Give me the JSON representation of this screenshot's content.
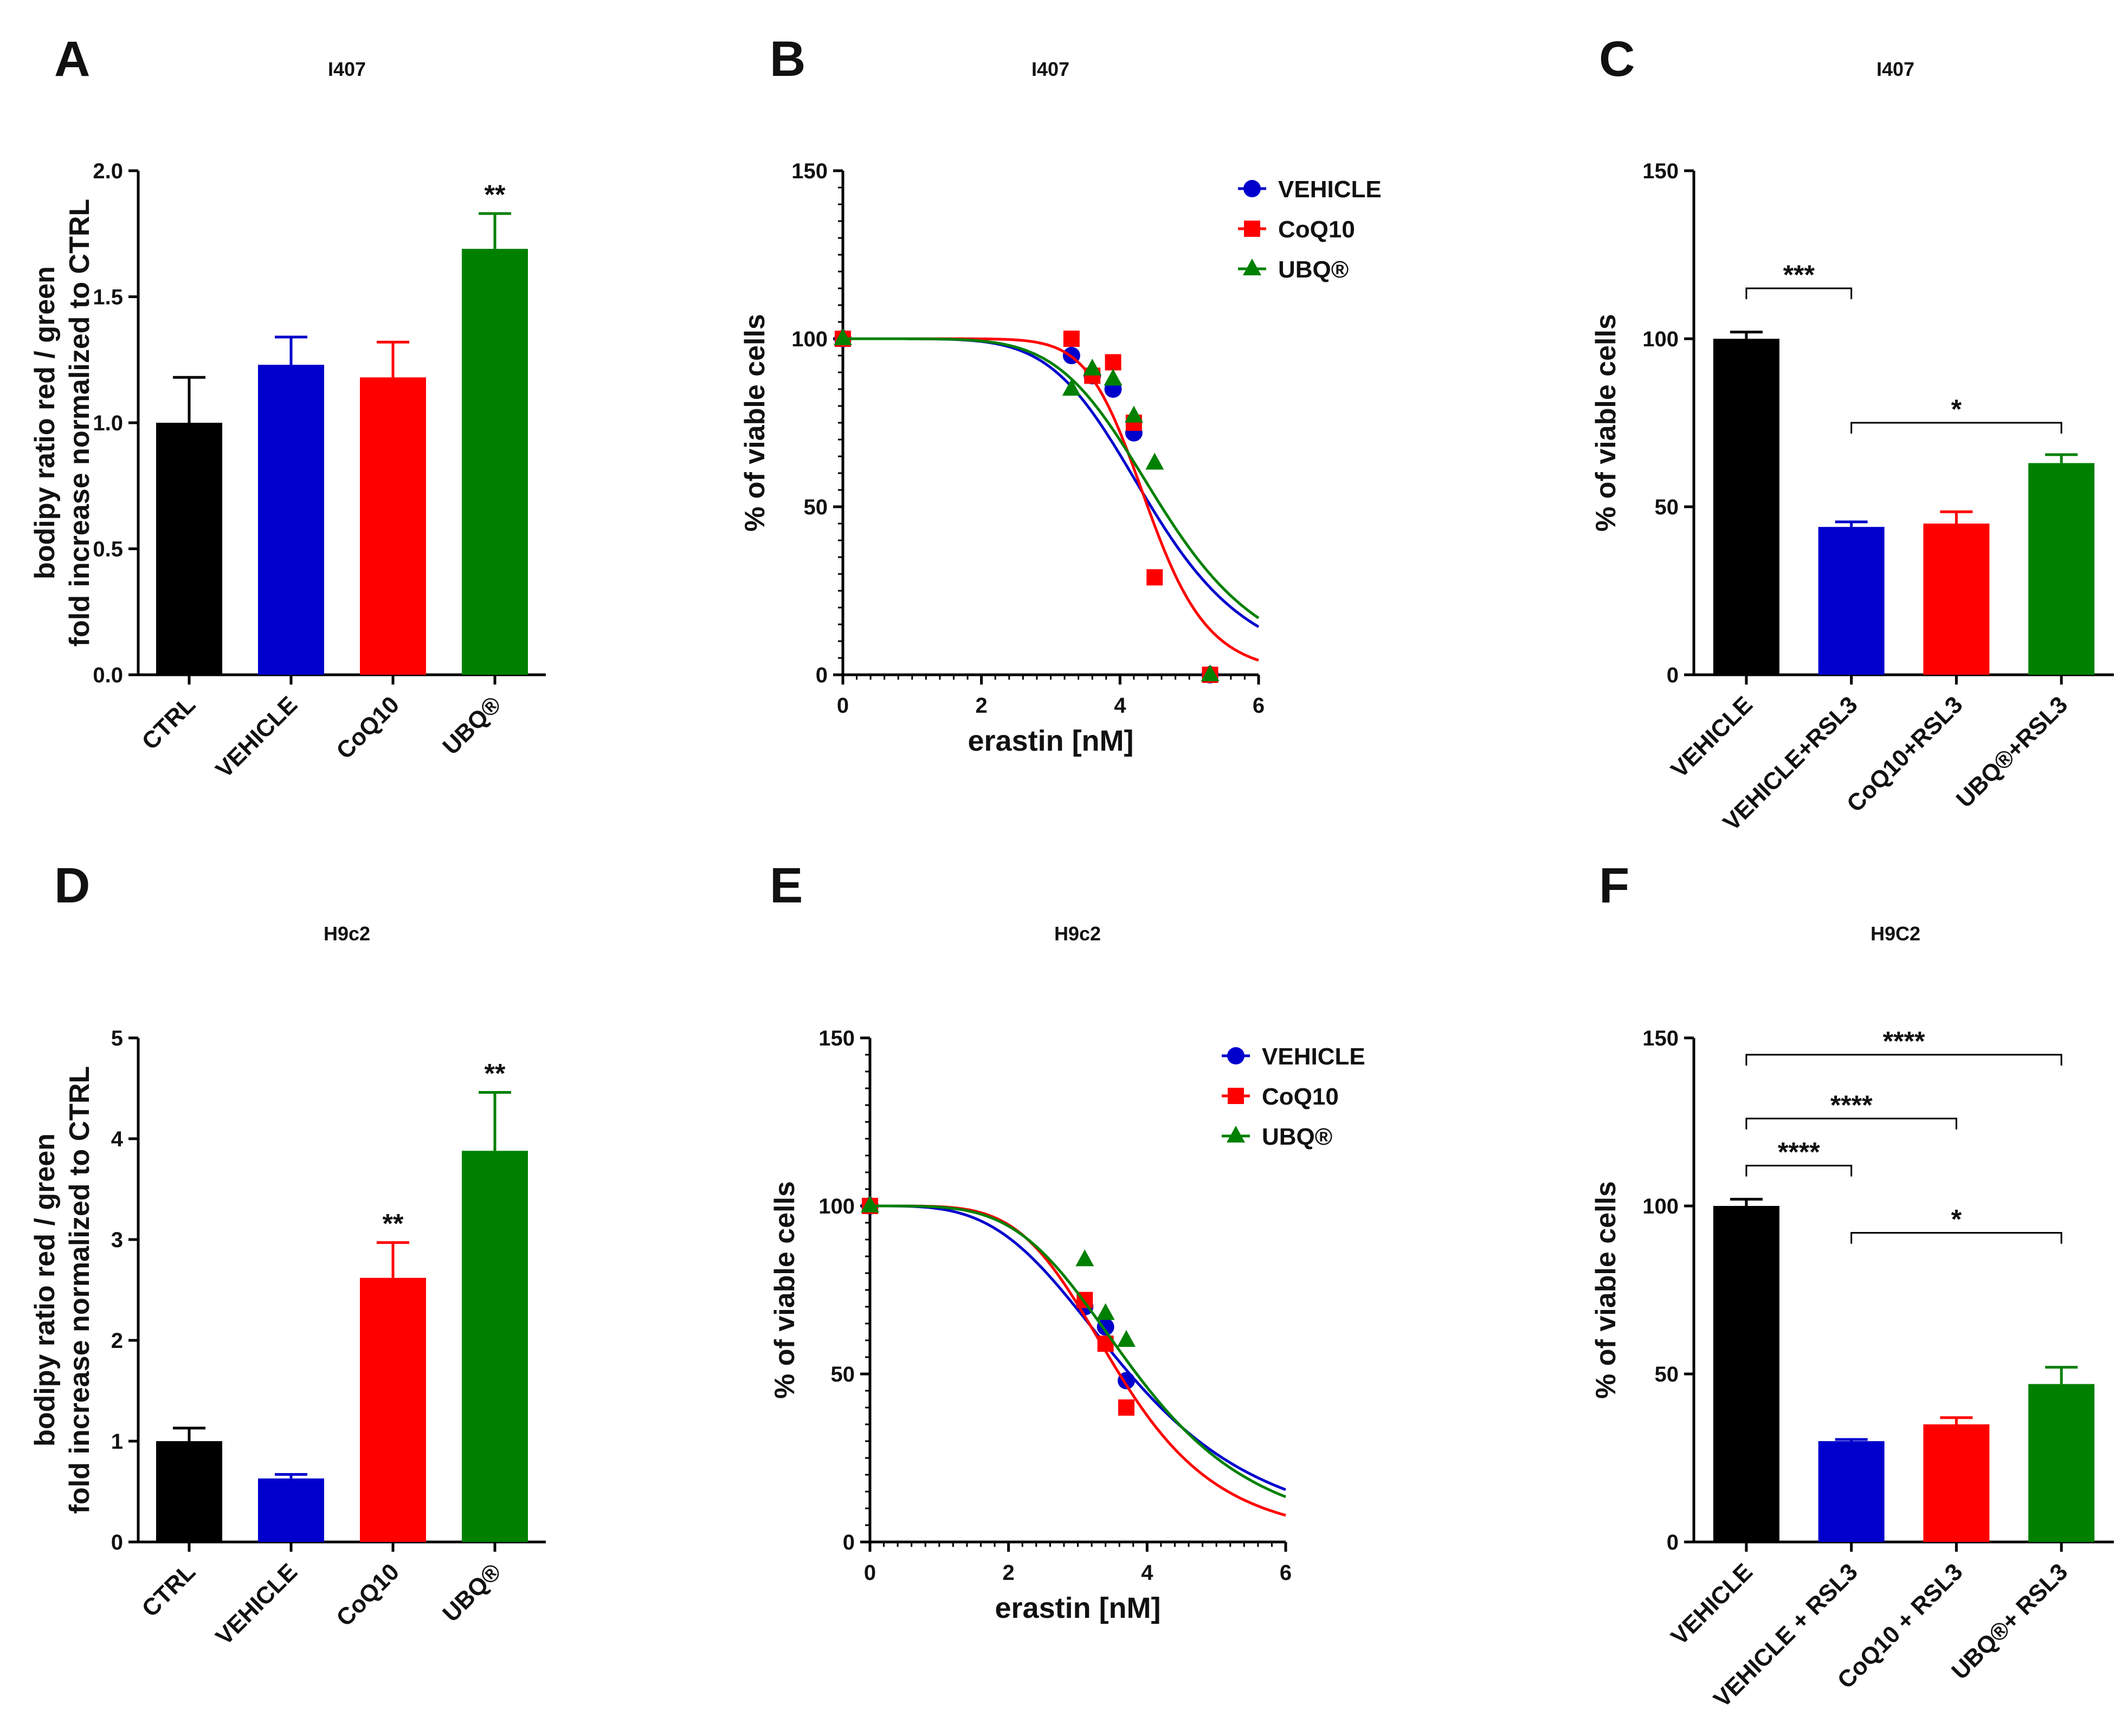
{
  "colors": {
    "black": "#000000",
    "blue": "#0000cc",
    "red": "#ff0000",
    "green": "#008000"
  },
  "chart_data": [
    {
      "panel": "A",
      "title": "I407",
      "type": "bar",
      "ylabel": [
        "bodipy ratio red / green",
        "fold increase normalized to CTRL"
      ],
      "ylim": [
        0,
        2.0
      ],
      "yticks": [
        "0.0",
        "0.5",
        "1.0",
        "1.5",
        "2.0"
      ],
      "categories": [
        "CTRL",
        "VEHICLE",
        "CoQ10",
        "UBQ®"
      ],
      "values": [
        1.0,
        1.23,
        1.18,
        1.69
      ],
      "errors": [
        0.18,
        0.11,
        0.14,
        0.14
      ],
      "colors": [
        "#000000",
        "#0000cc",
        "#ff0000",
        "#008000"
      ],
      "annotations": [
        "",
        "",
        "",
        "**"
      ],
      "brackets": []
    },
    {
      "panel": "B",
      "title": "I407",
      "type": "line",
      "xlabel": "erastin [nM]",
      "ylabel": "% of viable cells",
      "xlim": [
        0,
        6
      ],
      "ylim": [
        0,
        150
      ],
      "xticks": [
        "0",
        "2",
        "4",
        "6"
      ],
      "yticks": [
        "0",
        "50",
        "100",
        "150"
      ],
      "legend": [
        "VEHICLE",
        "CoQ10",
        "UBQ®"
      ],
      "series": [
        {
          "name": "VEHICLE",
          "color": "#0000cc",
          "marker": "circle",
          "x": [
            0,
            3.3,
            3.6,
            3.9,
            4.2,
            5.3
          ],
          "y": [
            100,
            95,
            89,
            85,
            72,
            0
          ],
          "ic50": 4.45,
          "hill": 6
        },
        {
          "name": "CoQ10",
          "color": "#ff0000",
          "marker": "square",
          "x": [
            0,
            3.3,
            3.6,
            3.9,
            4.2,
            4.5,
            5.3
          ],
          "y": [
            100,
            100,
            89,
            93,
            75,
            29,
            0
          ],
          "ic50": 4.4,
          "hill": 10
        },
        {
          "name": "UBQ®",
          "color": "#008000",
          "marker": "triangle",
          "x": [
            0,
            3.3,
            3.6,
            3.9,
            4.2,
            4.5,
            5.3
          ],
          "y": [
            100,
            85,
            91,
            88,
            77,
            63,
            0
          ],
          "ic50": 4.6,
          "hill": 6
        }
      ]
    },
    {
      "panel": "C",
      "title": "I407",
      "type": "bar",
      "ylabel": "% of viable cells",
      "ylim": [
        0,
        150
      ],
      "yticks": [
        "0",
        "50",
        "100",
        "150"
      ],
      "categories": [
        "VEHICLE",
        "VEHICLE+RSL3",
        "CoQ10+RSL3",
        "UBQ®+RSL3"
      ],
      "values": [
        100,
        44,
        45,
        63
      ],
      "errors": [
        2,
        1.5,
        3.5,
        2.5
      ],
      "colors": [
        "#000000",
        "#0000cc",
        "#ff0000",
        "#008000"
      ],
      "annotations": [
        "",
        "",
        "",
        ""
      ],
      "brackets": [
        {
          "from": 0,
          "to": 1,
          "y": 115,
          "label": "***"
        },
        {
          "from": 1,
          "to": 3,
          "y": 75,
          "label": "*"
        }
      ]
    },
    {
      "panel": "D",
      "title": "H9c2",
      "type": "bar",
      "ylabel": [
        "bodipy ratio red / green",
        "fold increase normalized to CTRL"
      ],
      "ylim": [
        0,
        5
      ],
      "yticks": [
        "0",
        "1",
        "2",
        "3",
        "4",
        "5"
      ],
      "categories": [
        "CTRL",
        "VEHICLE",
        "CoQ10",
        "UBQ®"
      ],
      "values": [
        1.0,
        0.63,
        2.62,
        3.88
      ],
      "errors": [
        0.13,
        0.04,
        0.35,
        0.58
      ],
      "colors": [
        "#000000",
        "#0000cc",
        "#ff0000",
        "#008000"
      ],
      "annotations": [
        "",
        "",
        "**",
        "**"
      ],
      "brackets": []
    },
    {
      "panel": "E",
      "title": "H9c2",
      "type": "line",
      "xlabel": "erastin [nM]",
      "ylabel": "% of viable cells",
      "xlim": [
        0,
        6
      ],
      "ylim": [
        0,
        150
      ],
      "xticks": [
        "0",
        "2",
        "4",
        "6"
      ],
      "yticks": [
        "0",
        "50",
        "100",
        "150"
      ],
      "legend": [
        "VEHICLE",
        "CoQ10",
        "UBQ®"
      ],
      "series": [
        {
          "name": "VEHICLE",
          "color": "#0000cc",
          "marker": "circle",
          "x": [
            0,
            3.1,
            3.4,
            3.7
          ],
          "y": [
            100,
            70,
            64,
            48
          ],
          "ic50": 3.75,
          "hill": 3.6
        },
        {
          "name": "CoQ10",
          "color": "#ff0000",
          "marker": "square",
          "x": [
            0,
            3.1,
            3.4,
            3.7
          ],
          "y": [
            100,
            72,
            59,
            40
          ],
          "ic50": 3.6,
          "hill": 4.8
        },
        {
          "name": "UBQ®",
          "color": "#008000",
          "marker": "triangle",
          "x": [
            0,
            3.1,
            3.4,
            3.7
          ],
          "y": [
            100,
            84,
            68,
            60
          ],
          "ic50": 3.85,
          "hill": 4.2
        }
      ]
    },
    {
      "panel": "F",
      "title": "H9C2",
      "type": "bar",
      "ylabel": "% of viable cells",
      "ylim": [
        0,
        150
      ],
      "yticks": [
        "0",
        "50",
        "100",
        "150"
      ],
      "categories": [
        "VEHICLE",
        "VEHICLE + RSL3",
        "CoQ10 + RSL3",
        "UBQ®+ RSL3"
      ],
      "values": [
        100,
        30,
        35,
        47
      ],
      "errors": [
        2,
        0.5,
        2,
        5
      ],
      "colors": [
        "#000000",
        "#0000cc",
        "#ff0000",
        "#008000"
      ],
      "annotations": [
        "",
        "",
        "",
        ""
      ],
      "brackets": [
        {
          "from": 0,
          "to": 3,
          "y": 145,
          "label": "****"
        },
        {
          "from": 0,
          "to": 2,
          "y": 126,
          "label": "****"
        },
        {
          "from": 0,
          "to": 1,
          "y": 112,
          "label": "****"
        },
        {
          "from": 1,
          "to": 3,
          "y": 92,
          "label": "*"
        }
      ]
    }
  ]
}
